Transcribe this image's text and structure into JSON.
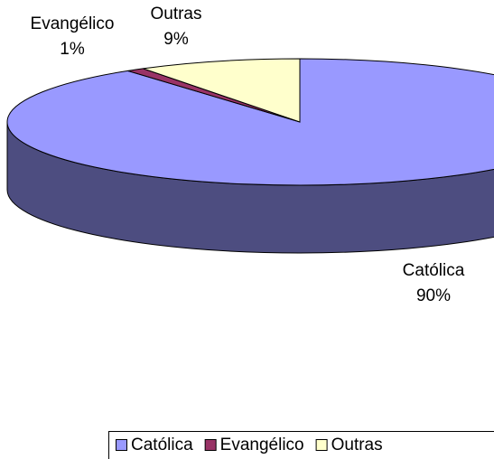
{
  "chart_data": {
    "type": "pie3d",
    "categories": [
      "Católica",
      "Evangélico",
      "Outras"
    ],
    "values": [
      90,
      1,
      9
    ],
    "value_labels": [
      "90%",
      "1%",
      "9%"
    ],
    "colors": [
      "#9999ff",
      "#993366",
      "#ffffcc"
    ],
    "legend": "bottom-right"
  }
}
